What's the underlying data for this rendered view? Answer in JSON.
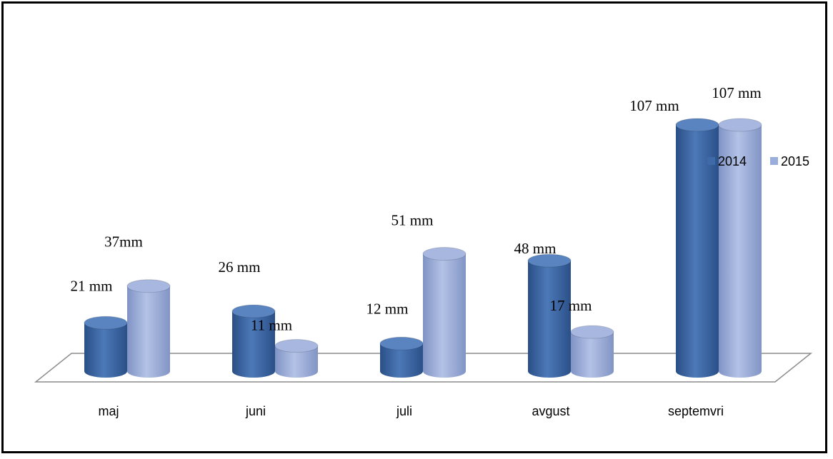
{
  "chart_data": {
    "type": "bar",
    "style": "3d-cylinder",
    "categories": [
      "maj",
      "juni",
      "juli",
      "avgust",
      "septemvri"
    ],
    "series": [
      {
        "name": "2014",
        "values": [
          21,
          26,
          12,
          48,
          107
        ],
        "labels": [
          "21 mm",
          "26 mm",
          "12 mm",
          "48 mm",
          "107 mm"
        ],
        "color": "#3f6aa8"
      },
      {
        "name": "2015",
        "values": [
          37,
          11,
          51,
          17,
          107
        ],
        "labels": [
          "37mm",
          "11 mm",
          "51 mm",
          "17 mm",
          "107 mm"
        ],
        "color": "#9aaedc"
      }
    ],
    "ylim": [
      0,
      110
    ],
    "grid": false,
    "legend": "right"
  }
}
